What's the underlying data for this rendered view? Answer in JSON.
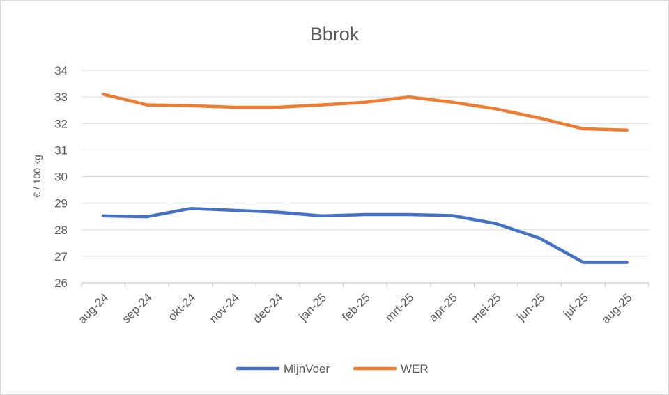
{
  "chart_data": {
    "type": "line",
    "title": "Bbrok",
    "xlabel": "",
    "ylabel": "€ / 100 kg",
    "ylim": [
      26,
      34
    ],
    "yticks": [
      26,
      27,
      28,
      29,
      30,
      31,
      32,
      33,
      34
    ],
    "grid": true,
    "legend_position": "bottom",
    "categories": [
      "aug-24",
      "sep-24",
      "okt-24",
      "nov-24",
      "dec-24",
      "jan-25",
      "feb-25",
      "mrt-25",
      "apr-25",
      "mei-25",
      "jun-25",
      "jul-25",
      "aug-25"
    ],
    "series": [
      {
        "name": "MijnVoer",
        "color": "#4472c4",
        "values": [
          28.52,
          28.49,
          28.8,
          28.73,
          28.66,
          28.52,
          28.57,
          28.57,
          28.53,
          28.23,
          27.68,
          26.77,
          26.77
        ]
      },
      {
        "name": "WER",
        "color": "#ed7d31",
        "values": [
          33.1,
          32.7,
          32.67,
          32.61,
          32.61,
          32.7,
          32.8,
          33.0,
          32.8,
          32.55,
          32.2,
          31.8,
          31.75
        ]
      }
    ]
  }
}
